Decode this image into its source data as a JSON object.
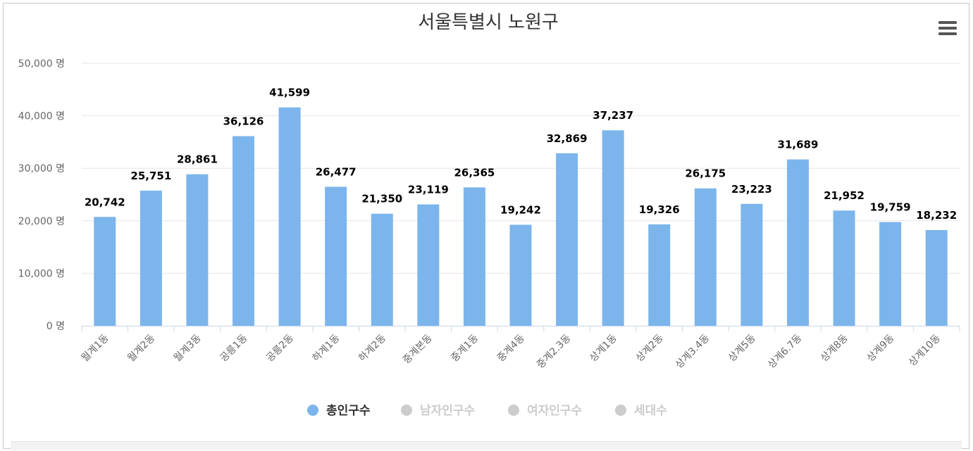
{
  "chart_data": {
    "type": "bar",
    "title": "서울특별시 노원구",
    "categories": [
      "월계1동",
      "월계2동",
      "월계3동",
      "공릉1동",
      "공릉2동",
      "하계1동",
      "하계2동",
      "중계본동",
      "중계1동",
      "중계4동",
      "중계2.3동",
      "상계1동",
      "상계2동",
      "상계3.4동",
      "상계5동",
      "상계6.7동",
      "상계8동",
      "상계9동",
      "상계10동"
    ],
    "series": [
      {
        "name": "총인구수",
        "color": "#7cb5ec",
        "values": [
          20742,
          25751,
          28861,
          36126,
          41599,
          26477,
          21350,
          23119,
          26365,
          19242,
          32869,
          37237,
          19326,
          26175,
          23223,
          31689,
          21952,
          19759,
          18232
        ],
        "labels": [
          "20,742",
          "25,751",
          "28,861",
          "36,126",
          "41,599",
          "26,477",
          "21,350",
          "23,119",
          "26,365",
          "19,242",
          "32,869",
          "37,237",
          "19,326",
          "26,175",
          "23,223",
          "31,689",
          "21,952",
          "19,759",
          "18,232"
        ]
      }
    ],
    "ylim": [
      0,
      50000
    ],
    "yticks": [
      0,
      10000,
      20000,
      30000,
      40000,
      50000
    ],
    "ytick_labels": [
      "0 명",
      "10,000 명",
      "20,000 명",
      "30,000 명",
      "40,000 명",
      "50,000 명"
    ],
    "grid": true,
    "legend": {
      "placement": "bottom",
      "items": [
        {
          "label": "총인구수",
          "active": true,
          "color": "#7cb5ec"
        },
        {
          "label": "남자인구수",
          "active": false,
          "color": "#cccccc"
        },
        {
          "label": "여자인구수",
          "active": false,
          "color": "#cccccc"
        },
        {
          "label": "세대수",
          "active": false,
          "color": "#cccccc"
        }
      ]
    }
  },
  "menu": {
    "icon": "hamburger-menu-icon"
  }
}
